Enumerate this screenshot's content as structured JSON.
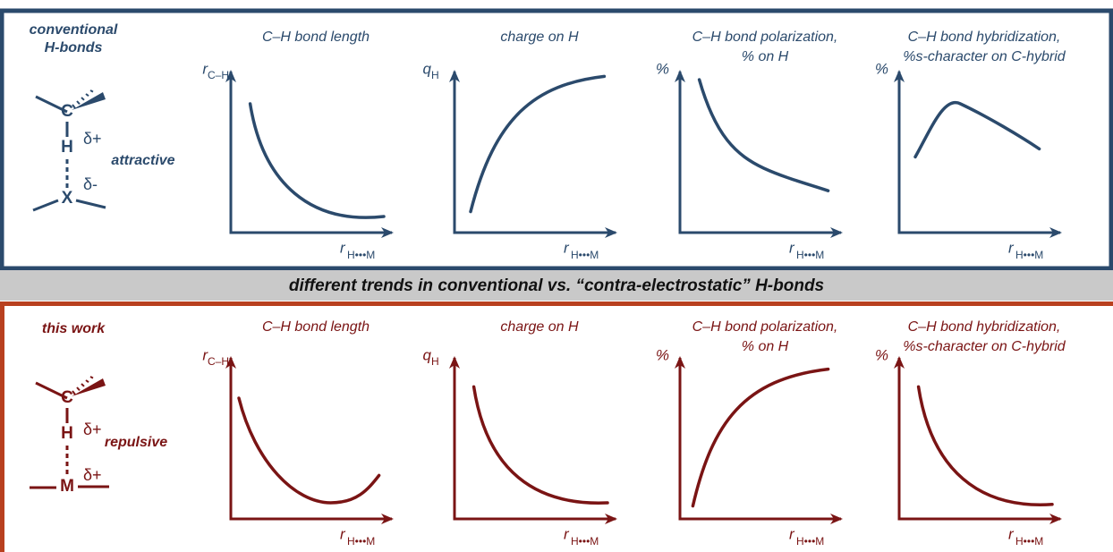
{
  "banner": "different trends in conventional vs. “contra-electrostatic” H-bonds",
  "panels": [
    {
      "label_lines": [
        "conventional",
        "H-bonds"
      ],
      "molecule": {
        "atoms": [
          "C",
          "H",
          "X"
        ],
        "charges": [
          "δ+",
          "δ-"
        ],
        "interaction": "attractive"
      },
      "plots": [
        {
          "title_lines": [
            "C–H bond length"
          ],
          "y_label": {
            "symbol": "r",
            "sub": "C–H"
          },
          "x_label": {
            "symbol": "r",
            "sub": "H•••M"
          }
        },
        {
          "title_lines": [
            "charge on H"
          ],
          "y_label": {
            "symbol": "q",
            "sub": "H"
          },
          "x_label": {
            "symbol": "r",
            "sub": "H•••M"
          }
        },
        {
          "title_lines": [
            "C–H bond polarization,",
            "% on H"
          ],
          "y_label": {
            "symbol": "%"
          },
          "x_label": {
            "symbol": "r",
            "sub": "H•••M"
          }
        },
        {
          "title_lines": [
            "C–H bond hybridization,",
            "%s-character on C-hybrid"
          ],
          "y_label": {
            "symbol": "%"
          },
          "x_label": {
            "symbol": "r",
            "sub": "H•••M"
          }
        }
      ]
    },
    {
      "label_lines": [
        "this work"
      ],
      "molecule": {
        "atoms": [
          "C",
          "H",
          "M"
        ],
        "charges": [
          "δ+",
          "δ+"
        ],
        "interaction": "repulsive"
      },
      "plots": [
        {
          "title_lines": [
            "C–H bond length"
          ],
          "y_label": {
            "symbol": "r",
            "sub": "C–H"
          },
          "x_label": {
            "symbol": "r",
            "sub": "H•••M"
          }
        },
        {
          "title_lines": [
            "charge on H"
          ],
          "y_label": {
            "symbol": "q",
            "sub": "H"
          },
          "x_label": {
            "symbol": "r",
            "sub": "H•••M"
          }
        },
        {
          "title_lines": [
            "C–H bond polarization,",
            "% on H"
          ],
          "y_label": {
            "symbol": "%"
          },
          "x_label": {
            "symbol": "r",
            "sub": "H•••M"
          }
        },
        {
          "title_lines": [
            "C–H bond hybridization,",
            "%s-character on C-hybrid"
          ],
          "y_label": {
            "symbol": "%"
          },
          "x_label": {
            "symbol": "r",
            "sub": "H•••M"
          }
        }
      ]
    }
  ]
}
